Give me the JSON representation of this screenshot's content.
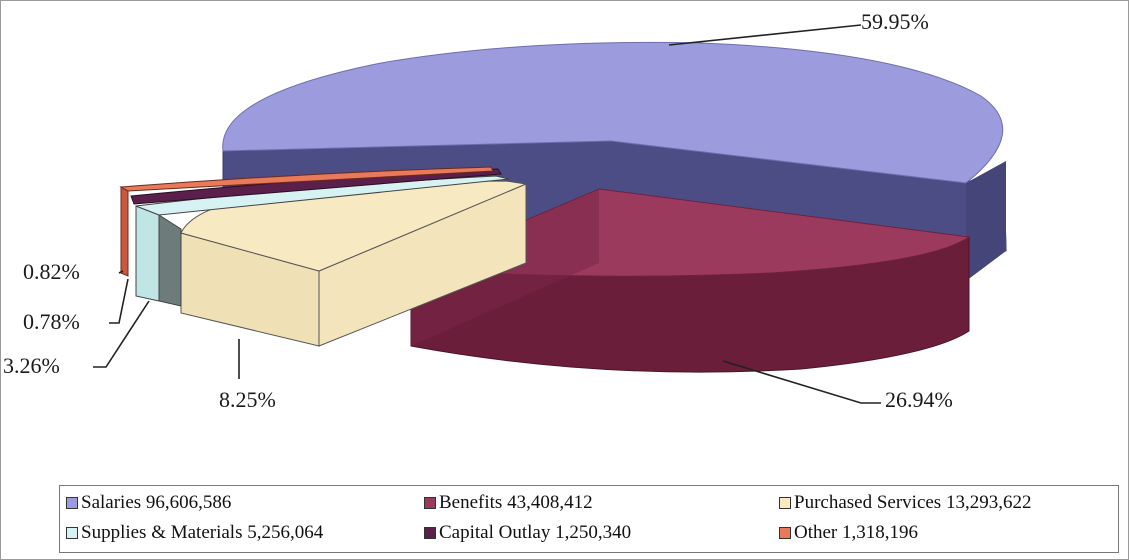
{
  "chart_data": {
    "type": "pie",
    "style": "3d-exploded",
    "slices": [
      {
        "name": "Salaries",
        "value": 96606586,
        "value_label": "96,606,586",
        "percent": 59.95,
        "percent_label": "59.95%",
        "color": "#9B9BDD",
        "side_color": "#4D4D86"
      },
      {
        "name": "Benefits",
        "value": 43408412,
        "value_label": "43,408,412",
        "percent": 26.94,
        "percent_label": "26.94%",
        "color": "#9C3A5E",
        "side_color": "#6B1E3A"
      },
      {
        "name": "Purchased Services",
        "value": 13293622,
        "value_label": "13,293,622",
        "percent": 8.25,
        "percent_label": "8.25%",
        "color": "#F7E9C2",
        "side_color": "#F0E0B6"
      },
      {
        "name": "Supplies & Materials",
        "value": 5256064,
        "value_label": "5,256,064",
        "percent": 3.26,
        "percent_label": "3.26%",
        "color": "#D6F2F2",
        "side_color": "#BFE5E5"
      },
      {
        "name": "Capital Outlay",
        "value": 1250340,
        "value_label": "1,250,340",
        "percent": 0.78,
        "percent_label": "0.78%",
        "color": "#5A1F4A",
        "side_color": "#451739"
      },
      {
        "name": "Other",
        "value": 1318196,
        "value_label": "1,318,196",
        "percent": 0.82,
        "percent_label": "0.82%",
        "color": "#E8795A",
        "side_color": "#C9583C"
      }
    ],
    "legend": {
      "placement": "bottom",
      "items": [
        {
          "label": "Salaries  96,606,586",
          "color": "#9B9BDD"
        },
        {
          "label": "Benefits  43,408,412",
          "color": "#9C3A5E"
        },
        {
          "label": "Purchased Services  13,293,622",
          "color": "#F7E9C2"
        },
        {
          "label": "Supplies & Materials  5,256,064",
          "color": "#D6F2F2"
        },
        {
          "label": "Capital Outlay  1,250,340",
          "color": "#5A1F4A"
        },
        {
          "label": "Other  1,318,196",
          "color": "#E8795A"
        }
      ]
    }
  }
}
